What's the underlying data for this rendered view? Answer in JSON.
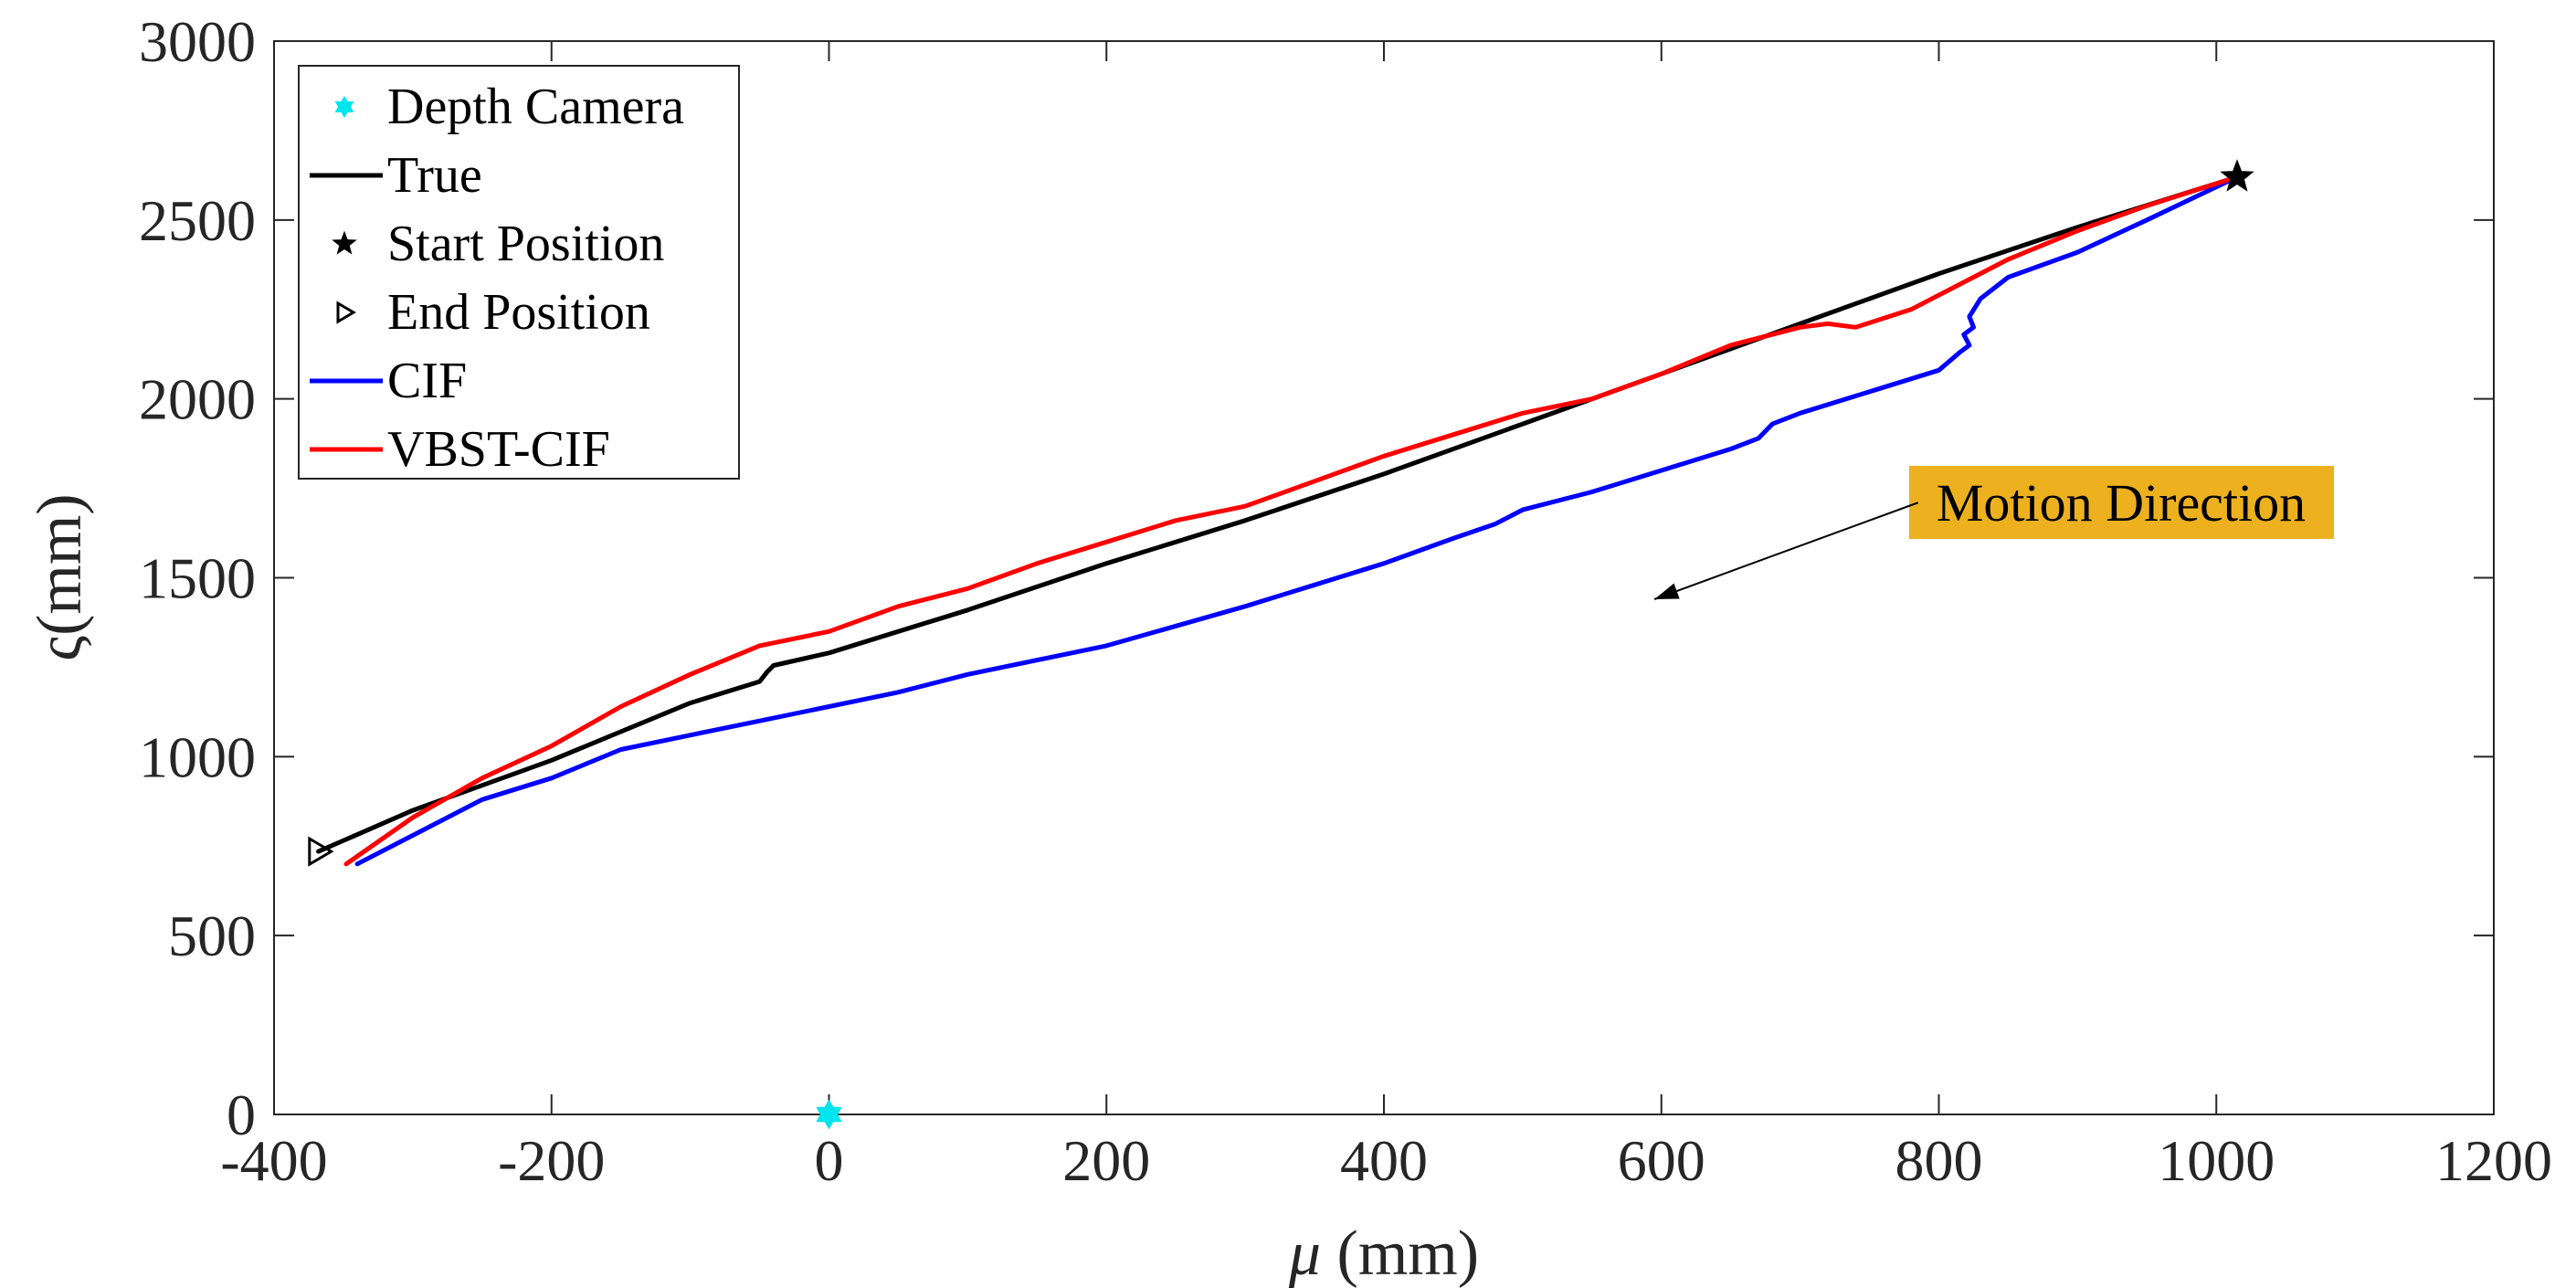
{
  "chart_data": {
    "type": "line",
    "title": "",
    "xlabel_symbol": "μ",
    "xlabel_unit": " (mm)",
    "ylabel": "ς(mm)",
    "xlim": [
      -400,
      1200
    ],
    "ylim": [
      0,
      3000
    ],
    "xticks": [
      -400,
      -200,
      0,
      200,
      400,
      600,
      800,
      1000,
      1200
    ],
    "yticks": [
      0,
      500,
      1000,
      1500,
      2000,
      2500,
      3000
    ],
    "xtick_labels": [
      "-400",
      "-200",
      "0",
      "200",
      "400",
      "600",
      "800",
      "1000",
      "1200"
    ],
    "ytick_labels": [
      "0",
      "500",
      "1000",
      "1500",
      "2000",
      "2500",
      "3000"
    ],
    "grid": false,
    "legend_position": "top-left",
    "legend": [
      {
        "label": "Depth Camera",
        "marker": "hexagram",
        "color": "#00e5ee"
      },
      {
        "label": "True",
        "line": true,
        "color": "#000000"
      },
      {
        "label": "Start Position",
        "marker": "star",
        "color": "#000000"
      },
      {
        "label": "End Position",
        "marker": "triangle-right",
        "color": "#000000"
      },
      {
        "label": "CIF",
        "line": true,
        "color": "#0000ff"
      },
      {
        "label": "VBST-CIF",
        "line": true,
        "color": "#ff0000"
      }
    ],
    "markers": [
      {
        "name": "Depth Camera",
        "x": 0,
        "y": 0,
        "shape": "hexagram",
        "color": "#00e5ee"
      },
      {
        "name": "Start Position",
        "x": 1015,
        "y": 2620,
        "shape": "star",
        "color": "#000000"
      },
      {
        "name": "End Position",
        "x": -368,
        "y": 735,
        "shape": "triangle-right",
        "color": "#000000"
      }
    ],
    "series": [
      {
        "name": "True",
        "color": "#000000",
        "x": [
          -368,
          -300,
          -200,
          -100,
          -50,
          -45,
          -40,
          0,
          100,
          200,
          300,
          400,
          500,
          600,
          700,
          800,
          900,
          1015
        ],
        "y": [
          735,
          850,
          990,
          1150,
          1210,
          1235,
          1255,
          1290,
          1410,
          1540,
          1660,
          1790,
          1930,
          2070,
          2210,
          2350,
          2480,
          2620
        ]
      },
      {
        "name": "CIF",
        "color": "#0000ff",
        "x": [
          -340,
          -300,
          -250,
          -200,
          -150,
          -100,
          -50,
          0,
          50,
          100,
          200,
          300,
          350,
          400,
          450,
          480,
          500,
          550,
          600,
          650,
          670,
          680,
          700,
          750,
          800,
          815,
          822,
          818,
          825,
          822,
          830,
          850,
          900,
          950,
          1015
        ],
        "y": [
          700,
          780,
          880,
          940,
          1020,
          1060,
          1100,
          1140,
          1180,
          1230,
          1310,
          1420,
          1480,
          1540,
          1610,
          1650,
          1690,
          1740,
          1800,
          1860,
          1890,
          1930,
          1960,
          2020,
          2080,
          2130,
          2150,
          2180,
          2200,
          2230,
          2280,
          2340,
          2410,
          2500,
          2620
        ]
      },
      {
        "name": "VBST-CIF",
        "color": "#ff0000",
        "x": [
          -348,
          -300,
          -250,
          -200,
          -150,
          -100,
          -50,
          0,
          50,
          100,
          150,
          200,
          250,
          300,
          350,
          400,
          450,
          500,
          550,
          600,
          650,
          700,
          720,
          740,
          780,
          820,
          850,
          900,
          950,
          1015
        ],
        "y": [
          700,
          830,
          940,
          1030,
          1140,
          1230,
          1310,
          1350,
          1420,
          1470,
          1540,
          1600,
          1660,
          1700,
          1770,
          1840,
          1900,
          1960,
          2000,
          2070,
          2150,
          2200,
          2210,
          2200,
          2250,
          2330,
          2390,
          2470,
          2540,
          2620
        ]
      }
    ],
    "annotation": {
      "text": "Motion Direction",
      "box_color": "#edb120",
      "arrow_from": [
        785,
        1710
      ],
      "arrow_to": [
        595,
        1440
      ]
    }
  }
}
